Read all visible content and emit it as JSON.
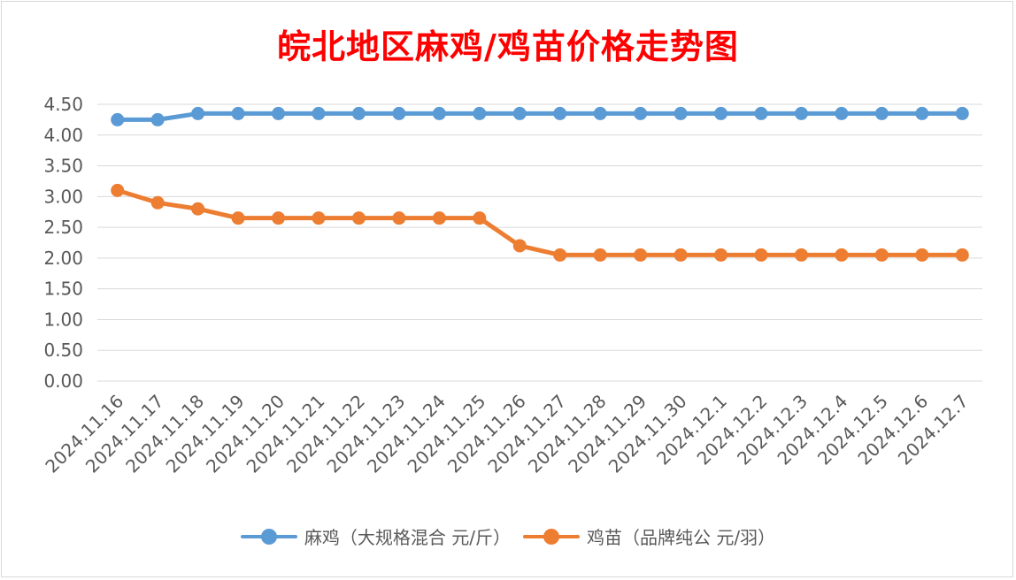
{
  "colors": {
    "series1": "#5b9bd5",
    "series2": "#ed7d31",
    "title": "#ff0000",
    "grid": "#d9d9d9",
    "text": "#595959"
  },
  "chart_data": {
    "type": "line",
    "title": "皖北地区麻鸡/鸡苗价格走势图",
    "xlabel": "",
    "ylabel": "",
    "ylim": [
      0,
      4.5
    ],
    "yticks": [
      "0.00",
      "0.50",
      "1.00",
      "1.50",
      "2.00",
      "2.50",
      "3.00",
      "3.50",
      "4.00",
      "4.50"
    ],
    "grid": true,
    "legend": "bottom",
    "categories": [
      "2024.11.16",
      "2024.11.17",
      "2024.11.18",
      "2024.11.19",
      "2024.11.20",
      "2024.11.21",
      "2024.11.22",
      "2024.11.23",
      "2024.11.24",
      "2024.11.25",
      "2024.11.26",
      "2024.11.27",
      "2024.11.28",
      "2024.11.29",
      "2024.11.30",
      "2024.12.1",
      "2024.12.2",
      "2024.12.3",
      "2024.12.4",
      "2024.12.5",
      "2024.12.6",
      "2024.12.7"
    ],
    "series": [
      {
        "name": "麻鸡（大规格混合 元/斤）",
        "values": [
          4.25,
          4.25,
          4.35,
          4.35,
          4.35,
          4.35,
          4.35,
          4.35,
          4.35,
          4.35,
          4.35,
          4.35,
          4.35,
          4.35,
          4.35,
          4.35,
          4.35,
          4.35,
          4.35,
          4.35,
          4.35,
          4.35
        ]
      },
      {
        "name": "鸡苗（品牌纯公 元/羽）",
        "values": [
          3.1,
          2.9,
          2.8,
          2.65,
          2.65,
          2.65,
          2.65,
          2.65,
          2.65,
          2.65,
          2.2,
          2.05,
          2.05,
          2.05,
          2.05,
          2.05,
          2.05,
          2.05,
          2.05,
          2.05,
          2.05,
          2.05
        ]
      }
    ]
  }
}
